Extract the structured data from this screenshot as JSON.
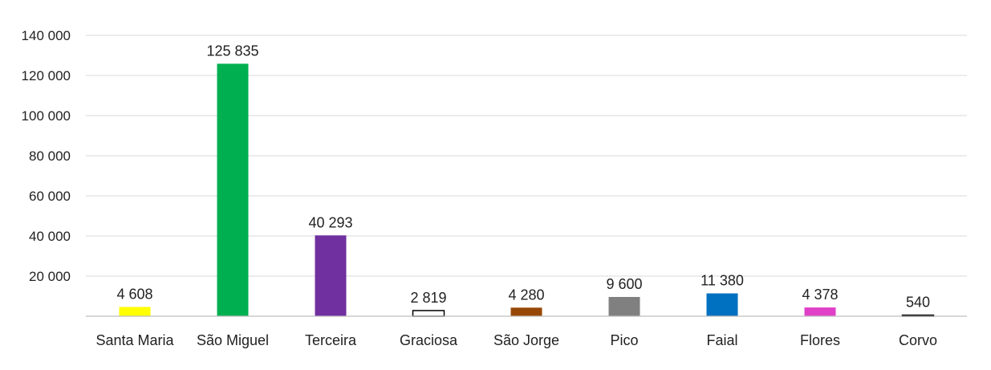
{
  "chart_data": {
    "type": "bar",
    "title": "",
    "xlabel": "",
    "ylabel": "",
    "ylim": [
      0,
      140000
    ],
    "y_ticks": [
      20000,
      40000,
      60000,
      80000,
      100000,
      120000,
      140000
    ],
    "y_tick_labels": [
      "20 000",
      "40 000",
      "60 000",
      "80 000",
      "100 000",
      "120 000",
      "140 000"
    ],
    "grid": true,
    "legend": "none",
    "categories": [
      "Santa Maria",
      "São Miguel",
      "Terceira",
      "Graciosa",
      "São Jorge",
      "Pico",
      "Faial",
      "Flores",
      "Corvo"
    ],
    "values": [
      4608,
      125835,
      40293,
      2819,
      4280,
      9600,
      11380,
      4378,
      540
    ],
    "value_labels": [
      "4 608",
      "125 835",
      "40 293",
      "2 819",
      "4 280",
      "9 600",
      "11 380",
      "4 378",
      "540"
    ],
    "bar_colors": [
      "#ffff00",
      "#00b050",
      "#7030a0",
      "#ffffff",
      "#974706",
      "#808080",
      "#0070c0",
      "#e040c8",
      "#ffffff"
    ],
    "bar_outline": [
      "none",
      "none",
      "none",
      "#000000",
      "none",
      "none",
      "none",
      "none",
      "#000000"
    ]
  }
}
